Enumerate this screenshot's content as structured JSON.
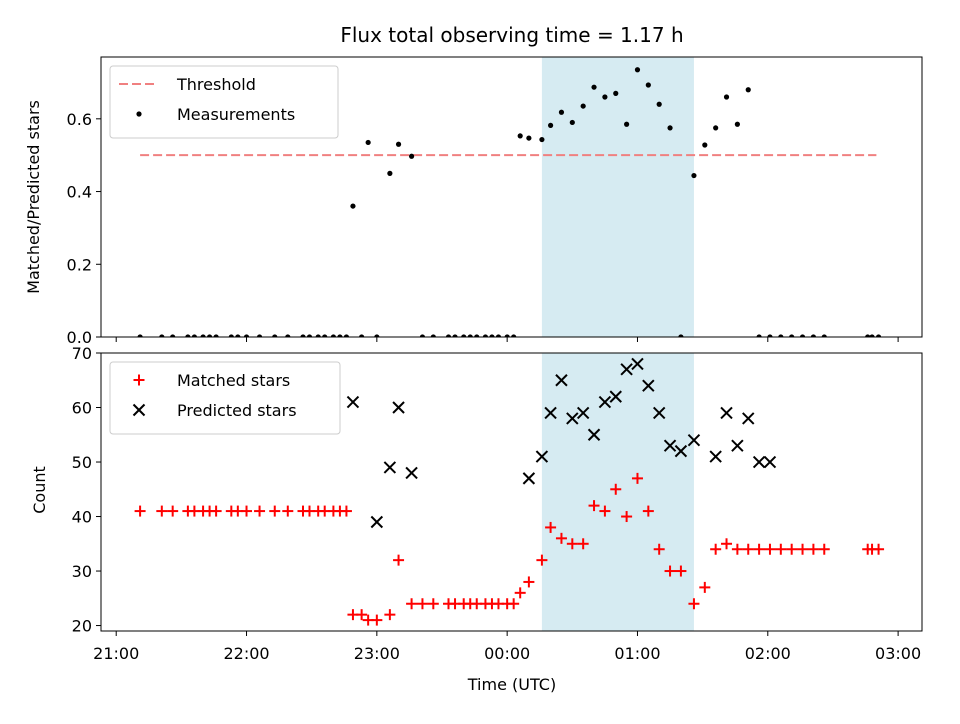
{
  "chart_data": {
    "type": "scatter",
    "title": "Flux total observing time = 1.17 h",
    "xlabel": "Time (UTC)",
    "x_ticks": [
      "21:00",
      "22:00",
      "23:00",
      "00:00",
      "01:00",
      "02:00",
      "03:00"
    ],
    "highlight_span": {
      "start": "00:16",
      "end": "01:26"
    },
    "colors": {
      "threshold": "#f08080",
      "measurements": "#000000",
      "matched": "#ff0000",
      "predicted": "#000000",
      "span": "#add8e6"
    },
    "panels": [
      {
        "id": "ratio",
        "ylabel": "Matched/Predicted stars",
        "ylim": [
          0,
          0.77
        ],
        "y_ticks": [
          "0.0",
          "0.2",
          "0.4",
          "0.6"
        ],
        "legend_position": "top-left",
        "series": [
          {
            "name": "Threshold",
            "kind": "dashed-line",
            "x": [
              "21:11",
              "02:50"
            ],
            "y": [
              0.5,
              0.5
            ]
          },
          {
            "name": "Measurements",
            "kind": "dot",
            "x": [
              "21:11",
              "21:21",
              "21:26",
              "21:33",
              "21:36",
              "21:40",
              "21:43",
              "21:46",
              "21:53",
              "21:56",
              "22:00",
              "22:06",
              "22:13",
              "22:19",
              "22:26",
              "22:29",
              "22:33",
              "22:36",
              "22:40",
              "22:43",
              "22:46",
              "22:49",
              "22:53",
              "22:56",
              "23:00",
              "23:06",
              "23:10",
              "23:16",
              "23:21",
              "23:26",
              "23:33",
              "23:36",
              "23:40",
              "23:43",
              "23:46",
              "23:50",
              "23:53",
              "23:56",
              "00:00",
              "00:03",
              "00:06",
              "00:10",
              "00:16",
              "00:20",
              "00:25",
              "00:30",
              "00:35",
              "00:40",
              "00:45",
              "00:50",
              "00:55",
              "01:00",
              "01:05",
              "01:10",
              "01:15",
              "01:20",
              "01:26",
              "01:31",
              "01:36",
              "01:41",
              "01:46",
              "01:51",
              "01:56",
              "02:01",
              "02:06",
              "02:11",
              "02:16",
              "02:21",
              "02:26",
              "02:46",
              "02:48",
              "02:51"
            ],
            "y": [
              0,
              0,
              0,
              0,
              0,
              0,
              0,
              0,
              0,
              0,
              0,
              0,
              0,
              0,
              0,
              0,
              0,
              0,
              0,
              0,
              0,
              0.36,
              0,
              0.535,
              0,
              0.45,
              0.53,
              0.497,
              0,
              0,
              0,
              0,
              0,
              0,
              0,
              0,
              0,
              0,
              0,
              0,
              0.553,
              0.547,
              0.543,
              0.582,
              0.618,
              0.59,
              0.635,
              0.687,
              0.66,
              0.67,
              0.585,
              0.735,
              0.693,
              0.64,
              0.575,
              0,
              0.444,
              0.528,
              0.575,
              0.66,
              0.585,
              0.68,
              0,
              0,
              0,
              0,
              0,
              0,
              0,
              0,
              0,
              0
            ]
          }
        ]
      },
      {
        "id": "count",
        "ylabel": "Count",
        "ylim": [
          19,
          70
        ],
        "y_ticks": [
          "20",
          "30",
          "40",
          "50",
          "60",
          "70"
        ],
        "legend_position": "top-left",
        "series": [
          {
            "name": "Matched stars",
            "kind": "plus",
            "x": [
              "21:11",
              "21:21",
              "21:26",
              "21:33",
              "21:36",
              "21:40",
              "21:43",
              "21:46",
              "21:53",
              "21:56",
              "22:00",
              "22:06",
              "22:13",
              "22:19",
              "22:26",
              "22:29",
              "22:33",
              "22:36",
              "22:40",
              "22:43",
              "22:46",
              "22:49",
              "22:53",
              "22:56",
              "23:00",
              "23:06",
              "23:10",
              "23:16",
              "23:21",
              "23:26",
              "23:33",
              "23:36",
              "23:40",
              "23:43",
              "23:46",
              "23:50",
              "23:53",
              "23:56",
              "00:00",
              "00:03",
              "00:06",
              "00:10",
              "00:16",
              "00:20",
              "00:25",
              "00:30",
              "00:35",
              "00:40",
              "00:45",
              "00:50",
              "00:55",
              "01:00",
              "01:05",
              "01:10",
              "01:15",
              "01:20",
              "01:26",
              "01:31",
              "01:36",
              "01:41",
              "01:46",
              "01:51",
              "01:56",
              "02:01",
              "02:06",
              "02:11",
              "02:16",
              "02:21",
              "02:26",
              "02:46",
              "02:48",
              "02:51"
            ],
            "y": [
              41,
              41,
              41,
              41,
              41,
              41,
              41,
              41,
              41,
              41,
              41,
              41,
              41,
              41,
              41,
              41,
              41,
              41,
              41,
              41,
              41,
              22,
              22,
              21,
              21,
              22,
              32,
              24,
              24,
              24,
              24,
              24,
              24,
              24,
              24,
              24,
              24,
              24,
              24,
              24,
              26,
              28,
              32,
              38,
              36,
              35,
              35,
              42,
              41,
              45,
              40,
              47,
              41,
              34,
              30,
              30,
              24,
              27,
              34,
              35,
              34,
              34,
              34,
              34,
              34,
              34,
              34,
              34,
              34,
              34,
              34,
              34
            ]
          },
          {
            "name": "Predicted stars",
            "kind": "cross",
            "x": [
              "22:49",
              "23:00",
              "23:06",
              "23:10",
              "23:16",
              "00:10",
              "00:16",
              "00:20",
              "00:25",
              "00:30",
              "00:35",
              "00:40",
              "00:45",
              "00:50",
              "00:55",
              "01:00",
              "01:05",
              "01:10",
              "01:15",
              "01:20",
              "01:26",
              "01:36",
              "01:41",
              "01:46",
              "01:51",
              "01:56",
              "02:01"
            ],
            "y": [
              61,
              39,
              49,
              60,
              48,
              47,
              51,
              59,
              65,
              58,
              59,
              55,
              61,
              62,
              67,
              68,
              64,
              59,
              53,
              52,
              54,
              51,
              59,
              53,
              58,
              50,
              50
            ]
          }
        ]
      }
    ]
  }
}
